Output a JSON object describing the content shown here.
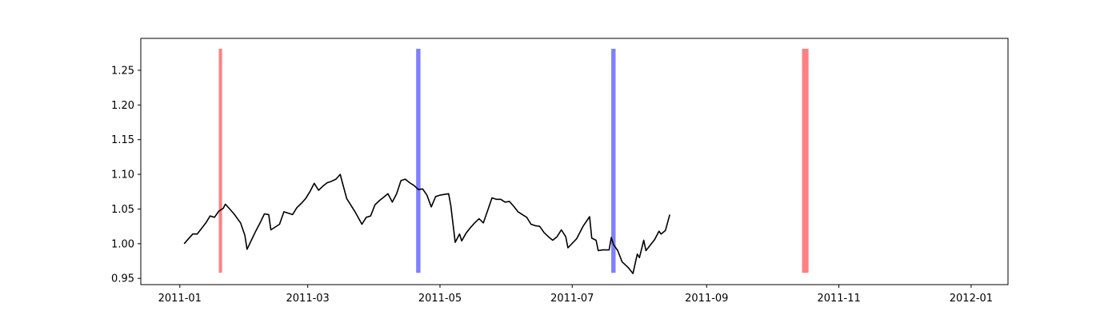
{
  "chart_data": {
    "type": "line",
    "title": "",
    "xlabel": "",
    "ylabel": "",
    "x_ticks": [
      "2011-01",
      "2011-03",
      "2011-05",
      "2011-07",
      "2011-09",
      "2011-11",
      "2012-01"
    ],
    "y_ticks": [
      "0.95",
      "1.00",
      "1.05",
      "1.10",
      "1.15",
      "1.20",
      "1.25"
    ],
    "xlim": [
      "2010-12-14",
      "2012-01-18"
    ],
    "ylim": [
      0.941,
      1.296
    ],
    "grid": false,
    "legend": "none",
    "colors": {
      "line": "#000000",
      "red_band": "#ff8080",
      "blue_band": "#8080ff"
    },
    "vertical_bands": [
      {
        "start": "2011-01-19",
        "end": "2011-01-20",
        "color": "red",
        "y_from": 0.958,
        "y_to": 1.281
      },
      {
        "start": "2011-04-20",
        "end": "2011-04-22",
        "color": "blue",
        "y_from": 0.958,
        "y_to": 1.281
      },
      {
        "start": "2011-07-19",
        "end": "2011-07-21",
        "color": "blue",
        "y_from": 0.958,
        "y_to": 1.281
      },
      {
        "start": "2011-10-15",
        "end": "2011-10-18",
        "color": "red",
        "y_from": 0.958,
        "y_to": 1.281
      }
    ],
    "series": [
      {
        "points": [
          [
            "2011-01-03",
            1.0
          ],
          [
            "2011-01-05",
            1.007
          ],
          [
            "2011-01-07",
            1.014
          ],
          [
            "2011-01-09",
            1.014
          ],
          [
            "2011-01-11",
            1.022
          ],
          [
            "2011-01-13",
            1.03
          ],
          [
            "2011-01-15",
            1.04
          ],
          [
            "2011-01-17",
            1.038
          ],
          [
            "2011-01-19",
            1.047
          ],
          [
            "2011-01-21",
            1.051
          ],
          [
            "2011-01-22",
            1.057
          ],
          [
            "2011-01-24",
            1.05
          ],
          [
            "2011-01-26",
            1.043
          ],
          [
            "2011-01-29",
            1.03
          ],
          [
            "2011-01-31",
            1.012
          ],
          [
            "2011-02-01",
            0.992
          ],
          [
            "2011-02-03",
            1.005
          ],
          [
            "2011-02-05",
            1.018
          ],
          [
            "2011-02-07",
            1.03
          ],
          [
            "2011-02-09",
            1.043
          ],
          [
            "2011-02-11",
            1.042
          ],
          [
            "2011-02-12",
            1.02
          ],
          [
            "2011-02-14",
            1.024
          ],
          [
            "2011-02-16",
            1.028
          ],
          [
            "2011-02-18",
            1.046
          ],
          [
            "2011-02-20",
            1.044
          ],
          [
            "2011-02-22",
            1.042
          ],
          [
            "2011-02-24",
            1.052
          ],
          [
            "2011-02-26",
            1.058
          ],
          [
            "2011-02-28",
            1.065
          ],
          [
            "2011-03-02",
            1.075
          ],
          [
            "2011-03-04",
            1.087
          ],
          [
            "2011-03-06",
            1.077
          ],
          [
            "2011-03-08",
            1.083
          ],
          [
            "2011-03-10",
            1.088
          ],
          [
            "2011-03-12",
            1.09
          ],
          [
            "2011-03-14",
            1.093
          ],
          [
            "2011-03-16",
            1.1
          ],
          [
            "2011-03-17",
            1.088
          ],
          [
            "2011-03-19",
            1.065
          ],
          [
            "2011-03-21",
            1.055
          ],
          [
            "2011-03-23",
            1.045
          ],
          [
            "2011-03-26",
            1.028
          ],
          [
            "2011-03-28",
            1.038
          ],
          [
            "2011-03-30",
            1.04
          ],
          [
            "2011-04-01",
            1.056
          ],
          [
            "2011-04-03",
            1.062
          ],
          [
            "2011-04-05",
            1.067
          ],
          [
            "2011-04-07",
            1.072
          ],
          [
            "2011-04-09",
            1.06
          ],
          [
            "2011-04-11",
            1.072
          ],
          [
            "2011-04-13",
            1.091
          ],
          [
            "2011-04-15",
            1.093
          ],
          [
            "2011-04-17",
            1.088
          ],
          [
            "2011-04-19",
            1.084
          ],
          [
            "2011-04-21",
            1.078
          ],
          [
            "2011-04-23",
            1.079
          ],
          [
            "2011-04-25",
            1.07
          ],
          [
            "2011-04-27",
            1.053
          ],
          [
            "2011-04-29",
            1.068
          ],
          [
            "2011-05-01",
            1.07
          ],
          [
            "2011-05-03",
            1.071
          ],
          [
            "2011-05-05",
            1.072
          ],
          [
            "2011-05-06",
            1.055
          ],
          [
            "2011-05-08",
            1.002
          ],
          [
            "2011-05-10",
            1.014
          ],
          [
            "2011-05-11",
            1.004
          ],
          [
            "2011-05-13",
            1.015
          ],
          [
            "2011-05-15",
            1.023
          ],
          [
            "2011-05-17",
            1.03
          ],
          [
            "2011-05-19",
            1.036
          ],
          [
            "2011-05-21",
            1.03
          ],
          [
            "2011-05-23",
            1.048
          ],
          [
            "2011-05-25",
            1.066
          ],
          [
            "2011-05-27",
            1.064
          ],
          [
            "2011-05-29",
            1.064
          ],
          [
            "2011-05-31",
            1.06
          ],
          [
            "2011-06-02",
            1.061
          ],
          [
            "2011-06-04",
            1.054
          ],
          [
            "2011-06-06",
            1.046
          ],
          [
            "2011-06-08",
            1.042
          ],
          [
            "2011-06-10",
            1.038
          ],
          [
            "2011-06-12",
            1.028
          ],
          [
            "2011-06-14",
            1.026
          ],
          [
            "2011-06-16",
            1.025
          ],
          [
            "2011-06-18",
            1.016
          ],
          [
            "2011-06-20",
            1.01
          ],
          [
            "2011-06-22",
            1.005
          ],
          [
            "2011-06-24",
            1.01
          ],
          [
            "2011-06-26",
            1.02
          ],
          [
            "2011-06-28",
            1.01
          ],
          [
            "2011-06-29",
            0.994
          ],
          [
            "2011-07-03",
            1.007
          ],
          [
            "2011-07-06",
            1.025
          ],
          [
            "2011-07-09",
            1.039
          ],
          [
            "2011-04-21",
            1.064
          ],
          [
            "2011-04-23",
            1.066
          ],
          [
            "2011-04-25",
            1.068
          ],
          [
            "2011-04-27",
            1.07
          ],
          [
            "2011-04-29",
            1.063
          ],
          [
            "2011-05-01",
            1.063
          ],
          [
            "2011-05-02",
            1.053
          ],
          [
            "2011-05-04",
            1.062
          ],
          [
            "2011-05-06",
            1.058
          ],
          [
            "2011-05-08",
            1.053
          ],
          [
            "2011-05-10",
            1.061
          ],
          [
            "2011-05-12",
            1.053
          ],
          [
            "2011-05-14",
            1.054
          ],
          [
            "2011-05-16",
            1.055
          ],
          [
            "2011-05-18",
            1.056
          ],
          [
            "2011-05-20",
            1.061
          ],
          [
            "2011-05-22",
            1.055
          ],
          [
            "2011-05-24",
            1.054
          ],
          [
            "2011-05-26",
            1.033
          ],
          [
            "2011-05-28",
            1.024
          ],
          [
            "2011-05-31",
            1.012
          ],
          [
            "2011-06-02",
            1.022
          ],
          [
            "2011-06-04",
            1.031
          ],
          [
            "2011-06-06",
            1.033
          ],
          [
            "2011-06-07",
            1.017
          ],
          [
            "2011-06-10",
            1.015
          ],
          [
            "2011-06-12",
            1.015
          ],
          [
            "2011-06-14",
            1.009
          ],
          [
            "2011-06-15",
            1.02
          ],
          [
            "2011-06-17",
            1.017
          ],
          [
            "2011-06-20",
            1.027
          ],
          [
            "2011-06-23",
            1.039
          ],
          [
            "2011-06-26",
            1.055
          ],
          [
            "2011-06-28",
            1.049
          ],
          [
            "2011-06-29",
            1.051
          ],
          [
            "2011-07-01",
            1.044
          ],
          [
            "2011-07-04",
            1.034
          ],
          [
            "2011-07-06",
            1.026
          ],
          [
            "2011-07-08",
            1.008
          ],
          [
            "2011-07-10",
            1.008
          ],
          [
            "2011-07-12",
            1.005
          ],
          [
            "2011-07-13",
            0.99
          ],
          [
            "2011-07-15",
            0.991
          ],
          [
            "2011-07-18",
            0.991
          ],
          [
            "2011-07-19",
            1.009
          ],
          [
            "2011-07-20",
            0.999
          ],
          [
            "2011-07-22",
            0.99
          ],
          [
            "2011-07-24",
            0.974
          ],
          [
            "2011-07-27",
            0.965
          ],
          [
            "2011-07-29",
            0.957
          ],
          [
            "2011-07-31",
            0.985
          ],
          [
            "2011-08-01",
            0.98
          ],
          [
            "2011-08-03",
            1.005
          ],
          [
            "2011-08-04",
            0.99
          ],
          [
            "2011-08-06",
            0.998
          ],
          [
            "2011-08-08",
            1.006
          ],
          [
            "2011-08-10",
            1.018
          ],
          [
            "2011-08-11",
            1.014
          ],
          [
            "2011-08-13",
            1.019
          ],
          [
            "2011-08-15",
            1.042
          ]
        ]
      }
    ]
  }
}
